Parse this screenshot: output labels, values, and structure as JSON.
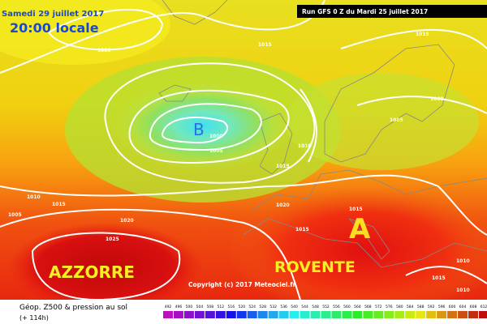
{
  "header": {
    "date": "Samedi 29 juillet 2017",
    "time": "20:00 locale",
    "run": "Run GFS 0 Z du Mardi 25 juillet 2017"
  },
  "map": {
    "low": "B",
    "high": "A",
    "regions": [
      "AZZORRE",
      "ROVENTE"
    ],
    "isobars": [
      "1020",
      "1015",
      "1015",
      "1000",
      "1000",
      "1005",
      "1010",
      "1005",
      "1015",
      "1010",
      "1005",
      "1015",
      "1020",
      "1020",
      "1025",
      "1015",
      "1015",
      "1010",
      "1015",
      "1010"
    ],
    "copyright": "Copyright (c) 2017 Meteociel.fr"
  },
  "legend": {
    "title": "Géop. Z500 & pression au sol",
    "lead": "(+ 114h)",
    "scale": [
      492,
      496,
      500,
      504,
      508,
      512,
      516,
      520,
      524,
      528,
      532,
      536,
      540,
      544,
      548,
      552,
      556,
      560,
      564,
      568,
      572,
      576,
      580,
      584,
      588,
      592,
      596,
      600,
      604,
      608,
      612
    ]
  }
}
